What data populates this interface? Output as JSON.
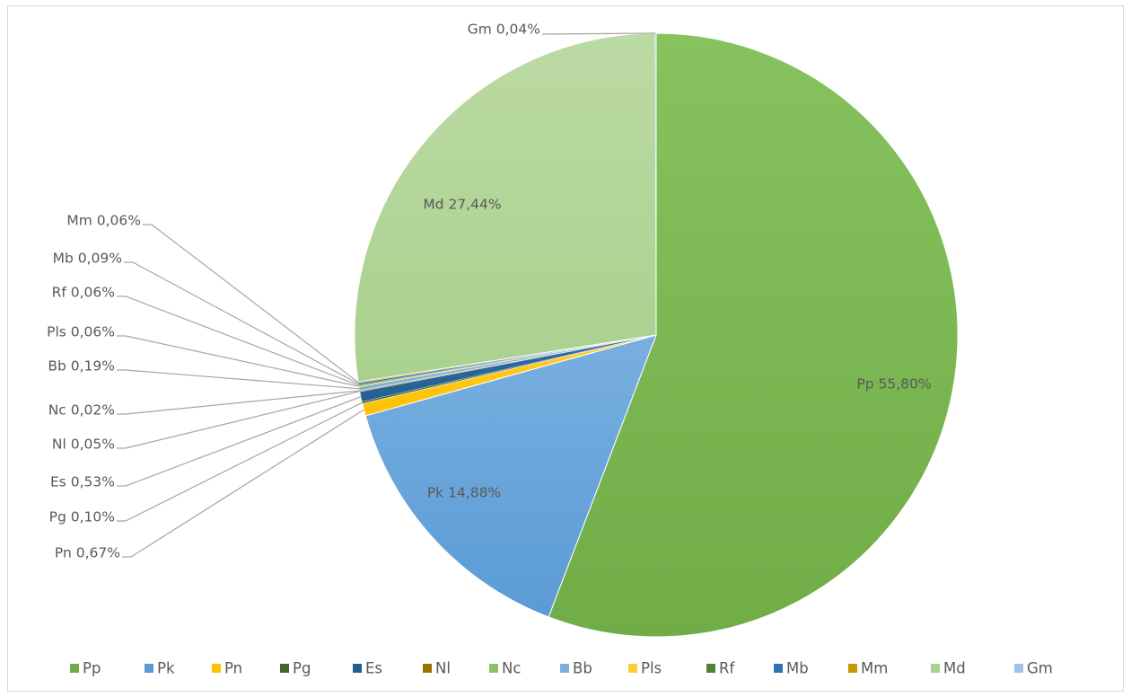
{
  "chart_data": {
    "type": "pie",
    "title": "",
    "legend_position": "bottom",
    "slices": [
      {
        "name": "Pp",
        "label": "Pp 55,80%",
        "value": 55.8,
        "color": "#70ad47",
        "color_light": "#86c25e"
      },
      {
        "name": "Pk",
        "label": "Pk 14,88%",
        "value": 14.88,
        "color": "#5b9bd5",
        "color_light": "#78afe0"
      },
      {
        "name": "Pn",
        "label": "Pn 0,67%",
        "value": 0.67,
        "color": "#ffc000",
        "color_light": "#ffcd33"
      },
      {
        "name": "Pg",
        "label": "Pg 0,10%",
        "value": 0.1,
        "color": "#43682b",
        "color_light": "#4f7a33"
      },
      {
        "name": "Es",
        "label": "Es 0,53%",
        "value": 0.53,
        "color": "#255e91",
        "color_light": "#2d6ea8"
      },
      {
        "name": "Nl",
        "label": "Nl 0,05%",
        "value": 0.05,
        "color": "#997300",
        "color_light": "#ad8300"
      },
      {
        "name": "Nc",
        "label": "Nc 0,02%",
        "value": 0.02,
        "color": "#8cc168",
        "color_light": "#9ccd7a"
      },
      {
        "name": "Bb",
        "label": "Bb 0,19%",
        "value": 0.19,
        "color": "#7cafdd",
        "color_light": "#8fbbe3"
      },
      {
        "name": "Pls",
        "label": "Pls 0,06%",
        "value": 0.06,
        "color": "#ffcd33",
        "color_light": "#ffd75c"
      },
      {
        "name": "Rf",
        "label": "Rf 0,06%",
        "value": 0.06,
        "color": "#548235",
        "color_light": "#60953d"
      },
      {
        "name": "Mb",
        "label": "Mb 0,09%",
        "value": 0.09,
        "color": "#2e75b6",
        "color_light": "#3a85c9"
      },
      {
        "name": "Mm",
        "label": "Mm 0,06%",
        "value": 0.06,
        "color": "#c89800",
        "color_light": "#daa700"
      },
      {
        "name": "Md",
        "label": "Md 27,44%",
        "value": 27.44,
        "color": "#a9d18e",
        "color_light": "#bbdaa4"
      },
      {
        "name": "Gm",
        "label": "Gm 0,04%",
        "value": 0.04,
        "color": "#9dc3e6",
        "color_light": "#b0cfec"
      }
    ]
  }
}
